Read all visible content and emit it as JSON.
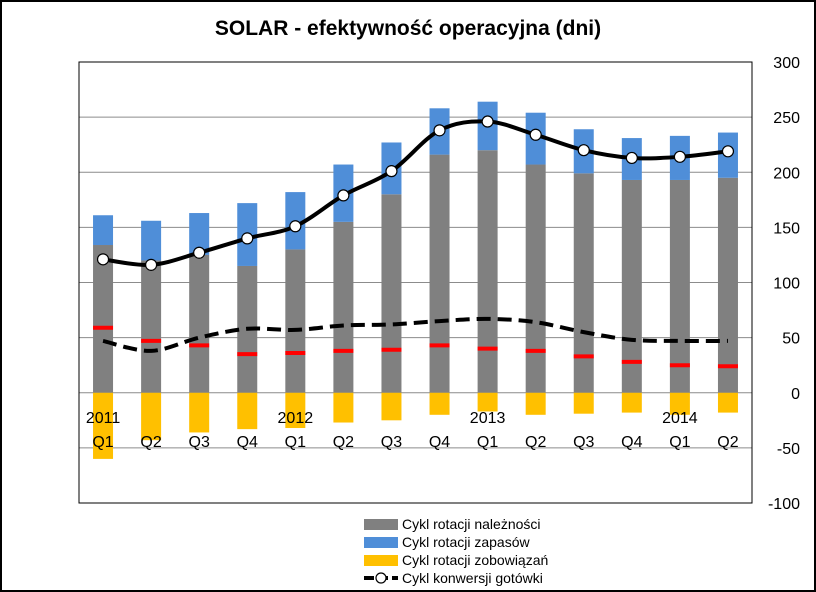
{
  "chart_data": {
    "type": "bar",
    "title": "SOLAR - efektywność operacyjna (dni)",
    "quarters": [
      "Q1",
      "Q2",
      "Q3",
      "Q4",
      "Q1",
      "Q2",
      "Q3",
      "Q4",
      "Q1",
      "Q2",
      "Q3",
      "Q4",
      "Q1",
      "Q2"
    ],
    "years": [
      {
        "label": "2011",
        "index": 0
      },
      {
        "label": "2012",
        "index": 4
      },
      {
        "label": "2013",
        "index": 8
      },
      {
        "label": "2014",
        "index": 12
      }
    ],
    "ylim": [
      -100,
      300
    ],
    "yticks": [
      300,
      250,
      200,
      150,
      100,
      50,
      0,
      -50,
      -100
    ],
    "grid": true,
    "legend_position": "bottom",
    "series": [
      {
        "name": "Cykl rotacji należności",
        "kind": "stacked-bar",
        "color": "#808080",
        "values": [
          134,
          120,
          125,
          115,
          130,
          155,
          180,
          216,
          220,
          207,
          199,
          193,
          193,
          195
        ]
      },
      {
        "name": "Cykl rotacji zapasów",
        "kind": "stacked-bar",
        "color": "#4F8ED8",
        "values": [
          27,
          36,
          38,
          57,
          52,
          52,
          47,
          42,
          44,
          47,
          40,
          38,
          40,
          41
        ]
      },
      {
        "name": "Cykl rotacji zobowiązań",
        "kind": "negative-bar",
        "color": "#FFC000",
        "values": [
          -60,
          -43,
          -36,
          -33,
          -32,
          -27,
          -25,
          -20,
          -17,
          -20,
          -19,
          -18,
          -20,
          -18
        ]
      },
      {
        "name": "Cykl konwersji gotówki",
        "kind": "line-marker",
        "color": "#000000",
        "values": [
          121,
          116,
          127,
          140,
          151,
          179,
          201,
          238,
          246,
          234,
          220,
          213,
          214,
          219
        ]
      },
      {
        "name": "",
        "kind": "dashed-line",
        "color": "#000000",
        "values": [
          47,
          38,
          50,
          58,
          57,
          61,
          62,
          65,
          67,
          64,
          55,
          48,
          47,
          47
        ]
      },
      {
        "name": "",
        "kind": "red-marker",
        "color": "#FF0000",
        "values": [
          59,
          47,
          43,
          35,
          36,
          38,
          39,
          43,
          40,
          38,
          33,
          28,
          25,
          24
        ]
      }
    ]
  }
}
